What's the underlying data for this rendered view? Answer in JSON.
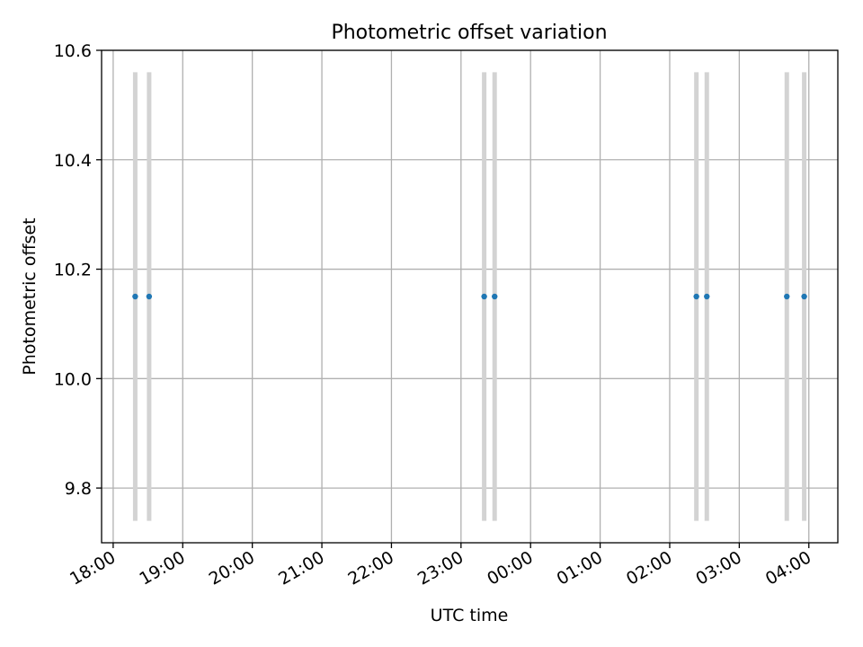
{
  "chart_data": {
    "type": "scatter",
    "title": "Photometric offset variation",
    "xlabel": "UTC time",
    "ylabel": "Photometric offset",
    "x_axis_kind": "time",
    "xlim": [
      "17:50",
      "04:25"
    ],
    "ylim": [
      9.7,
      10.6
    ],
    "x_ticks": [
      "18:00",
      "19:00",
      "20:00",
      "21:00",
      "22:00",
      "23:00",
      "00:00",
      "01:00",
      "02:00",
      "03:00",
      "04:00"
    ],
    "y_ticks": [
      9.8,
      10.0,
      10.2,
      10.4,
      10.6
    ],
    "grid": true,
    "points": [
      {
        "x": "18:19",
        "y": 10.15,
        "err_low": 9.74,
        "err_high": 10.56
      },
      {
        "x": "18:31",
        "y": 10.15,
        "err_low": 9.74,
        "err_high": 10.56
      },
      {
        "x": "23:20",
        "y": 10.15,
        "err_low": 9.74,
        "err_high": 10.56
      },
      {
        "x": "23:29",
        "y": 10.15,
        "err_low": 9.74,
        "err_high": 10.56
      },
      {
        "x": "02:23",
        "y": 10.15,
        "err_low": 9.74,
        "err_high": 10.56
      },
      {
        "x": "02:32",
        "y": 10.15,
        "err_low": 9.74,
        "err_high": 10.56
      },
      {
        "x": "03:41",
        "y": 10.15,
        "err_low": 9.74,
        "err_high": 10.56
      },
      {
        "x": "03:56",
        "y": 10.15,
        "err_low": 9.74,
        "err_high": 10.56
      }
    ],
    "colors": {
      "marker": "#1f77b4",
      "errorbar": "#d3d3d3",
      "grid": "#b0b0b0",
      "axis": "#000000"
    }
  }
}
